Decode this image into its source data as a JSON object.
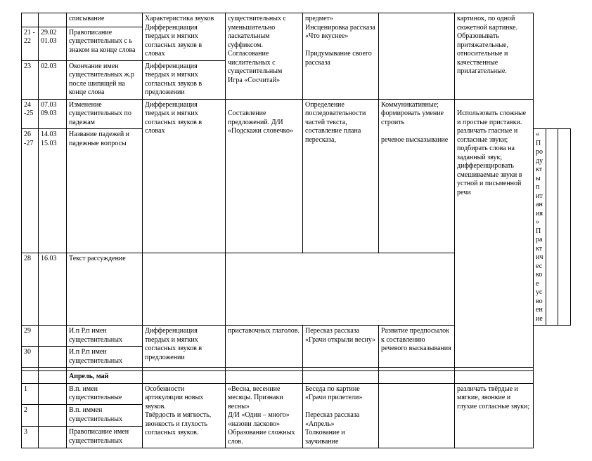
{
  "rows": [
    {
      "cells": [
        "",
        "",
        "списывание",
        "Характеристика звуков\nДифференциация твердых и мягких согласных звуков в словах",
        "существительных с уменьшительно ласкательным суффиксом.\nСогласование числительных с существительным\nИгра «Сосчитай»",
        "предмет»\nИнсценировка рассказа «Что вкуснее»\n\nПридумывание своего рассказа",
        "",
        "картинок, по одной сюжетной картинке.\nОбразовывать притяжательные, относительные и качественные прилагательные."
      ],
      "rowspan": [
        1,
        1,
        1,
        2,
        3,
        3,
        3,
        3
      ]
    },
    {
      "cells": [
        "21 - 22",
        "29.02\n01.03",
        "Правописание существительных с ь знаком на конце слова"
      ],
      "rowspan": [
        1,
        1,
        1
      ]
    },
    {
      "cells": [
        "23",
        "02.03",
        "Окончание имен существительных ж.р после шипящей на конце слова",
        "Дифференциация твердых и мягких согласных звуков в предложении"
      ],
      "rowspan": [
        1,
        1,
        1,
        1
      ]
    },
    {
      "cells": [
        "24 -25",
        "07.03\n09.03",
        "Изменение существительных по  падежам",
        "Дифференциация твердых и мягких согласных звуков в словах",
        "\nСоставление предложений. Д/И «Подскажи словечко»",
        "Определение последовательности частей текста, составление  плана пересказа,",
        "Коммуникативные; формировать умение строить\n\nречевое высказывание",
        "\nИспользовать сложные и простые приставки.\nразличать гласные и согласные звуки; подбирать слова на заданный звук; дифференцировать смешиваемые звуки в устной и письменной речи"
      ],
      "rowspan": [
        1,
        1,
        1,
        2,
        2,
        2,
        2,
        5
      ]
    },
    {
      "cells": [
        "26 -27",
        "14.03\n15.03",
        "Название падежей и падежные вопросы",
        "«Продукты питания»\nПрактическое усвоение",
        "",
        ""
      ],
      "rowspan": [
        1,
        1,
        1,
        2,
        2,
        2
      ]
    },
    {
      "cells": [
        "28",
        "16.03",
        "Текст рассуждение",
        ""
      ],
      "rowspan": [
        1,
        1,
        1,
        1
      ]
    },
    {
      "cells": [
        "29",
        "",
        "И.п Р.п имен существительных",
        "Дифференциация твердых и мягких согласных звуков в предложении",
        "приставочных глаголов.",
        "Пересказ рассказа «Грачи открыли весну»",
        "Развитие предпосылок к составлению речевого высказывания"
      ],
      "rowspan": [
        1,
        1,
        1,
        2,
        2,
        2,
        2
      ]
    },
    {
      "cells": [
        "30",
        "",
        "И.п Р.п имен существительных"
      ],
      "rowspan": [
        1,
        1,
        1
      ]
    },
    {
      "cells": [
        "",
        "",
        "",
        "",
        "",
        "",
        "",
        ""
      ],
      "rowspan": [
        1,
        1,
        1,
        1,
        1,
        1,
        1,
        1
      ]
    },
    {
      "cells": [
        "",
        "",
        "<b>Апрель, май</b>",
        "",
        "",
        "",
        "",
        ""
      ],
      "rowspan": [
        1,
        1,
        1,
        1,
        1,
        1,
        1,
        1
      ]
    },
    {
      "cells": [
        "1",
        "",
        "В.п. имен существительные",
        "Особенности артикуляции новых звуков.\nТвёрдость и мягкость, звонкость и глухость согласных звуков.",
        "«Весна, весенние месяцы. Признаки весны»\nД/И «Один – много»\n«назови ласково»\nОбразование сложных слов.",
        "Беседа по картине «Грачи прилетели»\n\nПересказ рассказа «Апрель»\nТолкование и заучивание",
        "",
        "различать твёрдые и мягкие, звонкие и глухие  согласные звуки;"
      ],
      "rowspan": [
        1,
        1,
        1,
        3,
        3,
        3,
        3,
        3
      ]
    },
    {
      "cells": [
        "2",
        "",
        "В.п. иммен существительных"
      ],
      "rowspan": [
        1,
        1,
        1
      ]
    },
    {
      "cells": [
        "3",
        "",
        "Правописание имен существительных"
      ],
      "rowspan": [
        1,
        1,
        1
      ]
    }
  ],
  "colClasses": [
    "c0",
    "c1",
    "c2",
    "c3",
    "c4",
    "c5",
    "c6",
    "c7"
  ]
}
